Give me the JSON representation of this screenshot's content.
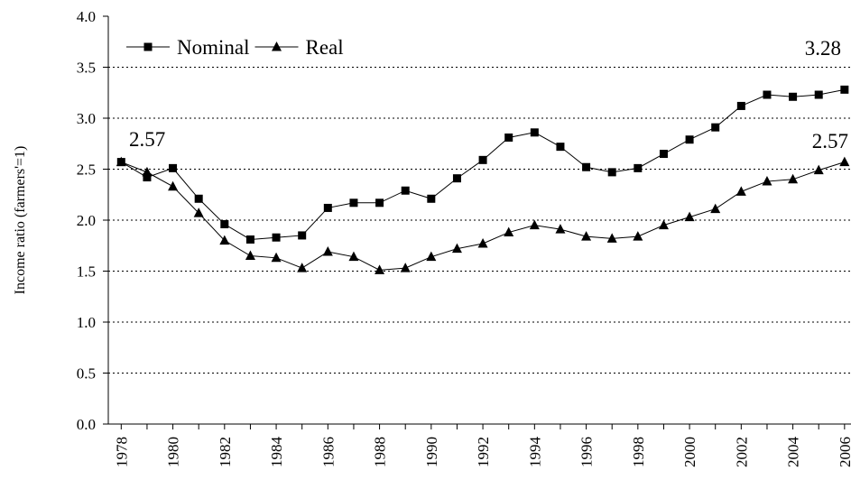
{
  "chart_data": {
    "type": "line",
    "y_label": "Income ratio (farmers'=1)",
    "x": [
      1978,
      1979,
      1980,
      1981,
      1982,
      1983,
      1984,
      1985,
      1986,
      1987,
      1988,
      1989,
      1990,
      1991,
      1992,
      1993,
      1994,
      1995,
      1996,
      1997,
      1998,
      1999,
      2000,
      2001,
      2002,
      2003,
      2004,
      2005,
      2006
    ],
    "series": [
      {
        "name": "Nominal",
        "color": "#000000",
        "marker": "square",
        "values": [
          2.57,
          2.42,
          2.51,
          2.21,
          1.96,
          1.81,
          1.83,
          1.85,
          2.12,
          2.17,
          2.17,
          2.29,
          2.21,
          2.41,
          2.59,
          2.81,
          2.86,
          2.72,
          2.52,
          2.47,
          2.51,
          2.65,
          2.79,
          2.91,
          3.12,
          3.23,
          3.21,
          3.23,
          3.28
        ]
      },
      {
        "name": "Real",
        "color": "#000000",
        "marker": "triangle",
        "values": [
          2.57,
          2.47,
          2.33,
          2.07,
          1.8,
          1.65,
          1.63,
          1.53,
          1.69,
          1.64,
          1.51,
          1.53,
          1.64,
          1.72,
          1.77,
          1.88,
          1.95,
          1.91,
          1.84,
          1.82,
          1.84,
          1.95,
          2.03,
          2.11,
          2.28,
          2.38,
          2.4,
          2.49,
          2.57
        ]
      }
    ],
    "annotations": [
      "2.57",
      "3.28",
      "2.57"
    ],
    "xlim": [
      1977.5,
      2006.25
    ],
    "xticks": [
      1978,
      1980,
      1982,
      1984,
      1986,
      1988,
      1990,
      1992,
      1994,
      1996,
      1998,
      2000,
      2002,
      2004,
      2006
    ],
    "ylim": [
      0,
      4
    ],
    "yticks": [
      {
        "value": 0,
        "label": "0.0"
      },
      {
        "value": 0.5,
        "label": "0.5"
      },
      {
        "value": 1,
        "label": "1.0"
      },
      {
        "value": 1.5,
        "label": "1.5"
      },
      {
        "value": 2,
        "label": "2.0"
      },
      {
        "value": 2.5,
        "label": "2.5"
      },
      {
        "value": 3,
        "label": "3.0"
      },
      {
        "value": 3.5,
        "label": "3.5"
      },
      {
        "value": 4,
        "label": "4.0"
      }
    ],
    "grid": true,
    "legend": "top-left"
  }
}
